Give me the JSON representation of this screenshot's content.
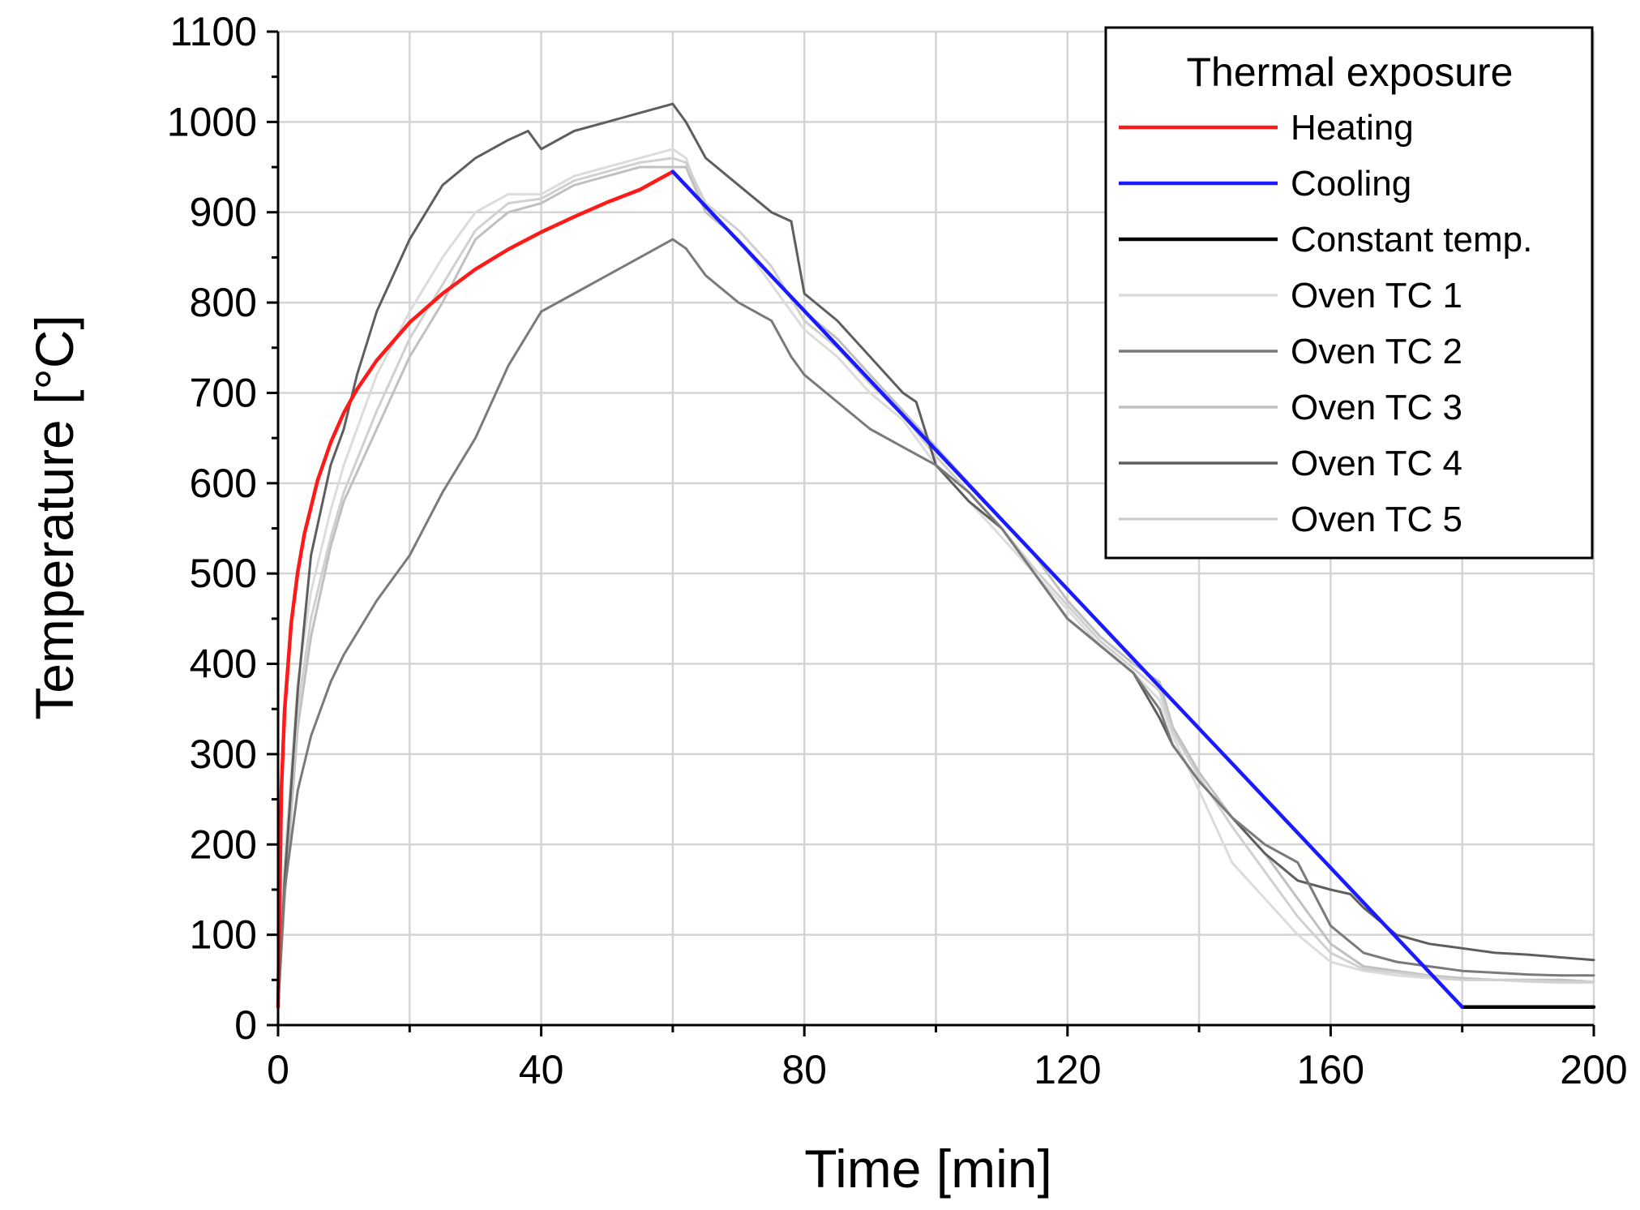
{
  "chart_data": {
    "type": "line",
    "xlabel": "Time [min]",
    "ylabel": "Temperature [°C]",
    "xlim": [
      0,
      200
    ],
    "ylim": [
      0,
      1100
    ],
    "xticks": [
      "0",
      "40",
      "80",
      "120",
      "160",
      "200"
    ],
    "yticks": [
      "0",
      "100",
      "200",
      "300",
      "400",
      "500",
      "600",
      "700",
      "800",
      "900",
      "1000",
      "1100"
    ],
    "grid": true,
    "legend_title": "Thermal exposure",
    "legend_position": "top-right",
    "series": [
      {
        "name": "Heating",
        "color": "#ff1a1a",
        "x": [
          0,
          0.5,
          1,
          2,
          3,
          4,
          6,
          8,
          10,
          12,
          15,
          20,
          25,
          30,
          35,
          40,
          45,
          50,
          55,
          60
        ],
        "y": [
          20,
          261,
          349,
          445,
          502,
          544,
          603,
          645,
          678,
          704,
          736,
          778,
          810,
          837,
          859,
          878,
          895,
          911,
          925,
          945
        ]
      },
      {
        "name": "Cooling",
        "color": "#1a1aff",
        "x": [
          60,
          180
        ],
        "y": [
          945,
          20
        ]
      },
      {
        "name": "Constant temp.",
        "color": "#000000",
        "x": [
          180,
          200
        ],
        "y": [
          20,
          20
        ]
      },
      {
        "name": "Oven TC 1",
        "color": "#dcdcdc",
        "x": [
          0,
          1,
          3,
          5,
          8,
          10,
          15,
          20,
          25,
          30,
          35,
          40,
          45,
          50,
          55,
          60,
          62,
          65,
          70,
          75,
          80,
          85,
          90,
          95,
          100,
          105,
          110,
          115,
          120,
          125,
          130,
          134,
          136,
          140,
          145,
          150,
          155,
          160,
          165,
          170,
          175,
          180,
          185,
          190,
          195,
          200
        ],
        "y": [
          20,
          180,
          380,
          480,
          570,
          620,
          720,
          790,
          850,
          900,
          920,
          920,
          940,
          950,
          960,
          970,
          960,
          900,
          870,
          820,
          770,
          740,
          700,
          670,
          620,
          580,
          540,
          500,
          460,
          420,
          390,
          360,
          320,
          260,
          180,
          140,
          100,
          70,
          60,
          55,
          52,
          50,
          50,
          48,
          47,
          47
        ]
      },
      {
        "name": "Oven TC 2",
        "color": "#7a7a7a",
        "x": [
          0,
          1,
          3,
          5,
          8,
          10,
          15,
          20,
          25,
          30,
          35,
          40,
          45,
          50,
          55,
          60,
          62,
          65,
          70,
          75,
          78,
          80,
          85,
          90,
          95,
          100,
          105,
          110,
          115,
          120,
          125,
          130,
          134,
          136,
          140,
          145,
          150,
          155,
          160,
          165,
          170,
          175,
          180,
          185,
          190,
          195,
          200
        ],
        "y": [
          20,
          150,
          260,
          320,
          380,
          410,
          470,
          520,
          590,
          650,
          730,
          790,
          810,
          830,
          850,
          870,
          860,
          830,
          800,
          780,
          740,
          720,
          690,
          660,
          640,
          620,
          590,
          550,
          500,
          450,
          420,
          390,
          350,
          310,
          270,
          230,
          200,
          180,
          110,
          80,
          70,
          65,
          60,
          58,
          56,
          55,
          55
        ]
      },
      {
        "name": "Oven TC 3",
        "color": "#c0c0c0",
        "x": [
          0,
          1,
          3,
          5,
          8,
          10,
          15,
          20,
          25,
          30,
          35,
          40,
          45,
          50,
          55,
          60,
          62,
          65,
          70,
          75,
          80,
          85,
          90,
          95,
          100,
          105,
          110,
          115,
          120,
          125,
          130,
          134,
          136,
          140,
          145,
          150,
          155,
          160,
          165,
          170,
          175,
          180,
          185,
          190,
          195,
          200
        ],
        "y": [
          20,
          140,
          330,
          430,
          530,
          580,
          660,
          740,
          800,
          870,
          900,
          910,
          930,
          940,
          950,
          950,
          950,
          900,
          870,
          830,
          790,
          760,
          720,
          680,
          640,
          600,
          560,
          520,
          470,
          430,
          400,
          380,
          330,
          280,
          230,
          190,
          140,
          90,
          65,
          60,
          55,
          52,
          50,
          50,
          50,
          48
        ]
      },
      {
        "name": "Oven TC 4",
        "color": "#5e5e5e",
        "x": [
          0,
          1,
          3,
          5,
          8,
          10,
          12,
          15,
          20,
          25,
          30,
          35,
          38,
          40,
          45,
          50,
          55,
          60,
          62,
          65,
          70,
          75,
          78,
          80,
          85,
          90,
          95,
          97,
          100,
          105,
          110,
          115,
          120,
          125,
          130,
          134,
          136,
          140,
          145,
          150,
          155,
          160,
          163,
          165,
          170,
          175,
          180,
          185,
          190,
          195,
          200
        ],
        "y": [
          20,
          160,
          370,
          520,
          620,
          660,
          720,
          790,
          870,
          930,
          960,
          980,
          990,
          970,
          990,
          1000,
          1010,
          1020,
          1000,
          960,
          930,
          900,
          890,
          810,
          780,
          740,
          700,
          690,
          620,
          580,
          550,
          500,
          450,
          420,
          390,
          340,
          310,
          270,
          230,
          190,
          160,
          150,
          145,
          130,
          100,
          90,
          85,
          80,
          78,
          75,
          72
        ]
      },
      {
        "name": "Oven TC 5",
        "color": "#d0d0d0",
        "x": [
          0,
          1,
          3,
          5,
          8,
          10,
          15,
          20,
          25,
          30,
          35,
          40,
          45,
          50,
          55,
          60,
          62,
          65,
          70,
          75,
          80,
          85,
          90,
          95,
          100,
          105,
          110,
          115,
          120,
          125,
          130,
          134,
          136,
          140,
          145,
          150,
          155,
          160,
          165,
          170,
          175,
          180,
          185,
          190,
          195,
          200
        ],
        "y": [
          20,
          170,
          350,
          450,
          540,
          590,
          680,
          760,
          820,
          880,
          910,
          915,
          935,
          945,
          955,
          960,
          955,
          910,
          880,
          840,
          780,
          750,
          710,
          675,
          630,
          590,
          550,
          505,
          465,
          425,
          395,
          370,
          325,
          275,
          220,
          170,
          120,
          80,
          62,
          58,
          54,
          50,
          50,
          49,
          48,
          48
        ]
      }
    ]
  }
}
